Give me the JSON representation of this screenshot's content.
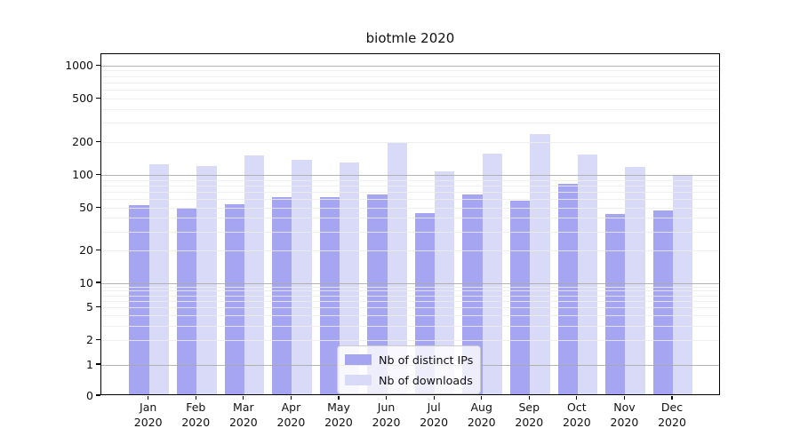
{
  "chart_data": {
    "type": "bar",
    "title": "biotmle 2020",
    "x_months": [
      "Jan",
      "Feb",
      "Mar",
      "Apr",
      "May",
      "Jun",
      "Jul",
      "Aug",
      "Sep",
      "Oct",
      "Nov",
      "Dec"
    ],
    "x_year": "2020",
    "series": [
      {
        "name": "Nb of distinct IPs",
        "color": "#a5a5f1",
        "values": [
          51,
          48,
          52,
          61,
          61,
          64,
          43,
          64,
          56,
          80,
          42,
          46
        ]
      },
      {
        "name": "Nb of downloads",
        "color": "#d9d9f8",
        "values": [
          123,
          118,
          148,
          133,
          127,
          192,
          105,
          153,
          230,
          150,
          115,
          98
        ]
      }
    ],
    "ytick_labels": [
      "0",
      "1",
      "2",
      "5",
      "10",
      "20",
      "50",
      "100",
      "200",
      "500",
      "1000"
    ],
    "yticks": [
      0,
      1,
      2,
      5,
      10,
      20,
      50,
      100,
      200,
      500,
      1000
    ],
    "ylim": [
      0,
      1000
    ],
    "yscale": "log",
    "grid": true,
    "legend_position": "bottom-center"
  },
  "colors": {
    "bar_distinct_ips": "#a5a5f1",
    "bar_downloads": "#d9d9f8",
    "grid_major": "#a8a8a8",
    "grid_minor": "#ececec",
    "axis": "#000000",
    "background": "#ffffff"
  }
}
